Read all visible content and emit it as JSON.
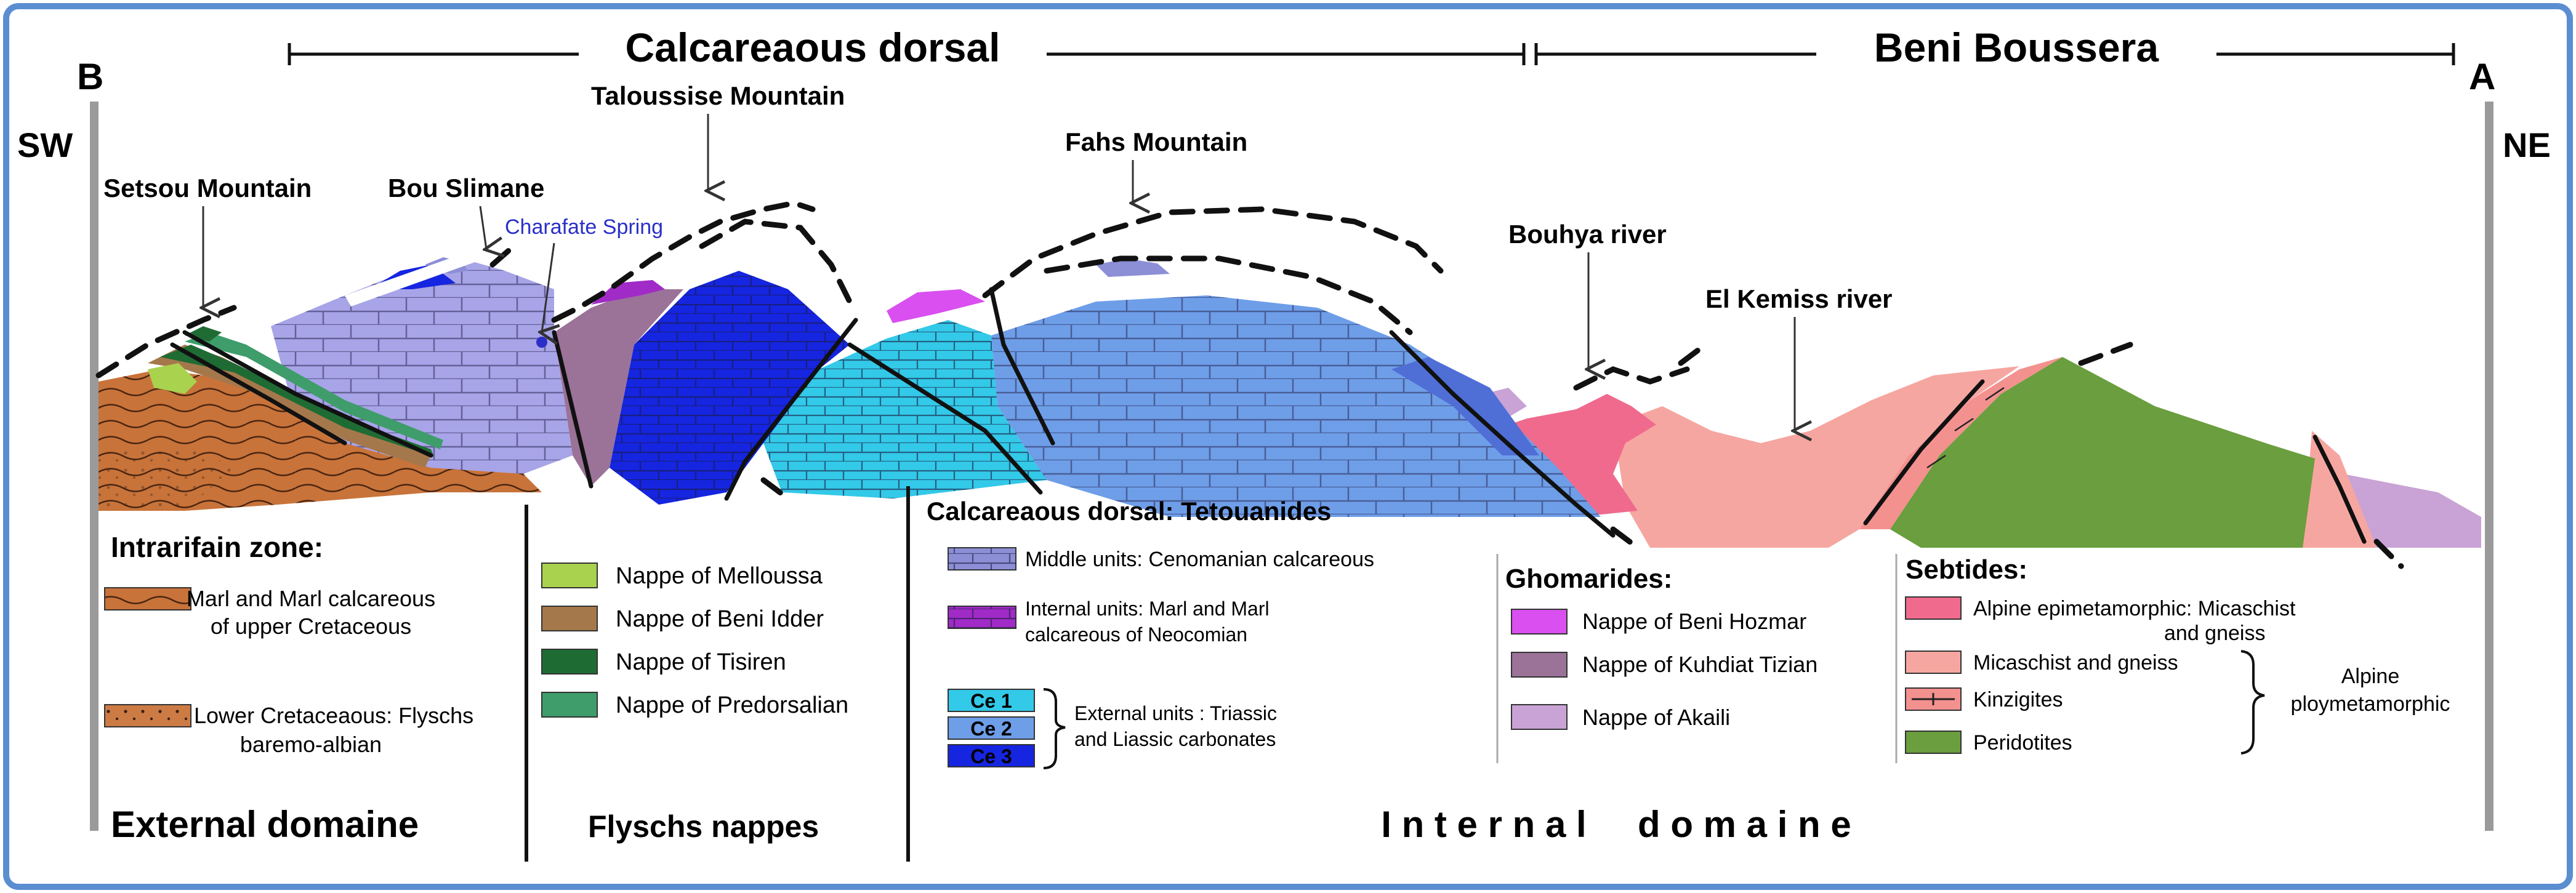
{
  "colors": {
    "frame_blue": "#5B8DD1",
    "marl_orange": "#C8733A",
    "flysch_orange": "#CD7B45",
    "melloussa": "#A9D24E",
    "beni_idder": "#A5784B",
    "tisiren": "#1F6B34",
    "predorsalian": "#3E9D6A",
    "middle_units": "#8C8FD6",
    "internal_units": "#A12BC7",
    "ce1": "#33C9E8",
    "ce2": "#6E9EE8",
    "ce3": "#1525E0",
    "bou_slimane_limestone": "#A8A4E8",
    "beni_hozmar": "#D94FF0",
    "kuhdiat_tizian": "#9B7298",
    "akaili": "#C9A3D6",
    "alpine_epimetamorphic": "#F06A8E",
    "micaschist_gneiss": "#F6A6A0",
    "kinzigites": "#F3918F",
    "peridotites": "#6A9E3E",
    "spring_text": "#2A2FC8"
  },
  "header": {
    "calcareous_dorsal": "Calcareaous dorsal",
    "beni_boussera": "Beni Boussera"
  },
  "section": {
    "b_label": "B",
    "sw_label": "SW",
    "a_label": "A",
    "ne_label": "NE",
    "setsou": "Setsou Mountain",
    "bou_slimane": "Bou Slimane",
    "charafate": "Charafate Spring",
    "taloussise": "Taloussise Mountain",
    "fahs": "Fahs Mountain",
    "bouhya": "Bouhya river",
    "el_kemiss": "El Kemiss river"
  },
  "legend": {
    "intrarifain_title": "Intrarifain zone:",
    "marl_line1": "Marl and Marl calcareous",
    "marl_line2": "of upper Cretaceous",
    "lower_line1": "Lower Cretaceaous: Flyschs",
    "lower_line2": "baremo-albian",
    "external_domain": "External domaine",
    "melloussa": "Nappe of Melloussa",
    "beni_idder": "Nappe of Beni Idder",
    "tisiren": "Nappe of Tisiren",
    "predorsalian": "Nappe of Predorsalian",
    "flyschs_nappes": "Flyschs nappes",
    "tetouanides_title": "Calcareaous dorsal: Tetouanides",
    "middle_units": "Middle units: Cenomanian calcareous",
    "internal_line1": "Internal units: Marl and Marl",
    "internal_line2": "calcareous of Neocomian",
    "ce1": "Ce 1",
    "ce2": "Ce 2",
    "ce3": "Ce 3",
    "external_line1": "External units : Triassic",
    "external_line2": "and Liassic carbonates",
    "internal_domain": "I n t e r n a l     d o m a i n e",
    "ghomarides_title": "Ghomarides:",
    "beni_hozmar": "Nappe of Beni Hozmar",
    "kuhdiat": "Nappe of Kuhdiat Tizian",
    "akaili": "Nappe of Akaili",
    "sebtides_title": "Sebtides:",
    "alpine_epi_line1": "Alpine epimetamorphic: Micaschist",
    "alpine_epi_line2": "and gneiss",
    "micaschist": "Micaschist and gneiss",
    "kinzigites": "Kinzigites",
    "peridotites": "Peridotites",
    "alpine_poly_line1": "Alpine",
    "alpine_poly_line2": "ploymetamorphic"
  }
}
